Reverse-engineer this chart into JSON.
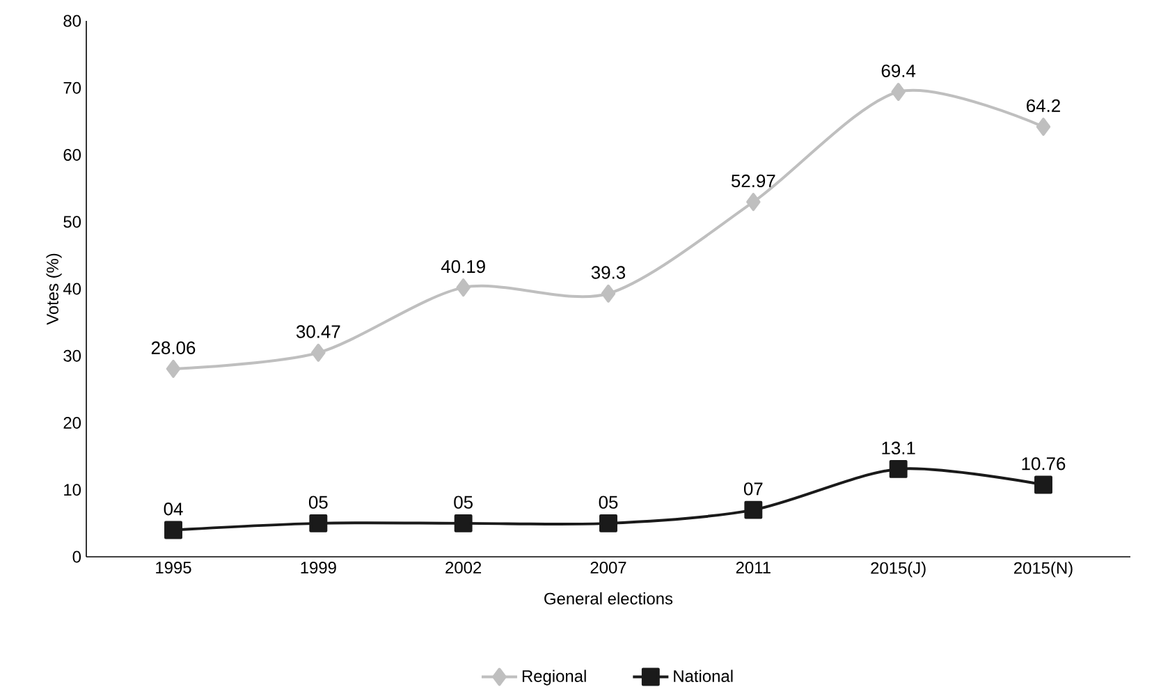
{
  "chart_data": {
    "type": "line",
    "xlabel": "General elections",
    "ylabel": "Votes (%)",
    "categories": [
      "1995",
      "1999",
      "2002",
      "2007",
      "2011",
      "2015(J)",
      "2015(N)"
    ],
    "ylim": [
      0,
      80
    ],
    "yticks": [
      0,
      10,
      20,
      30,
      40,
      50,
      60,
      70,
      80
    ],
    "legend": "bottom",
    "line_style": "solid",
    "series": [
      {
        "name": "Regional",
        "color": "#bfbfbf",
        "marker": "diamond",
        "values": [
          28.06,
          30.47,
          40.19,
          39.3,
          52.97,
          69.4,
          64.2
        ],
        "value_labels": [
          "28.06",
          "30.47",
          "40.19",
          "39.3",
          "52.97",
          "69.4",
          "64.2"
        ]
      },
      {
        "name": "National",
        "color": "#1a1a1a",
        "marker": "square",
        "values": [
          4,
          5,
          5,
          5,
          7,
          13.1,
          10.76
        ],
        "value_labels": [
          "04",
          "05",
          "05",
          "05",
          "07",
          "13.1",
          "10.76"
        ]
      }
    ]
  }
}
